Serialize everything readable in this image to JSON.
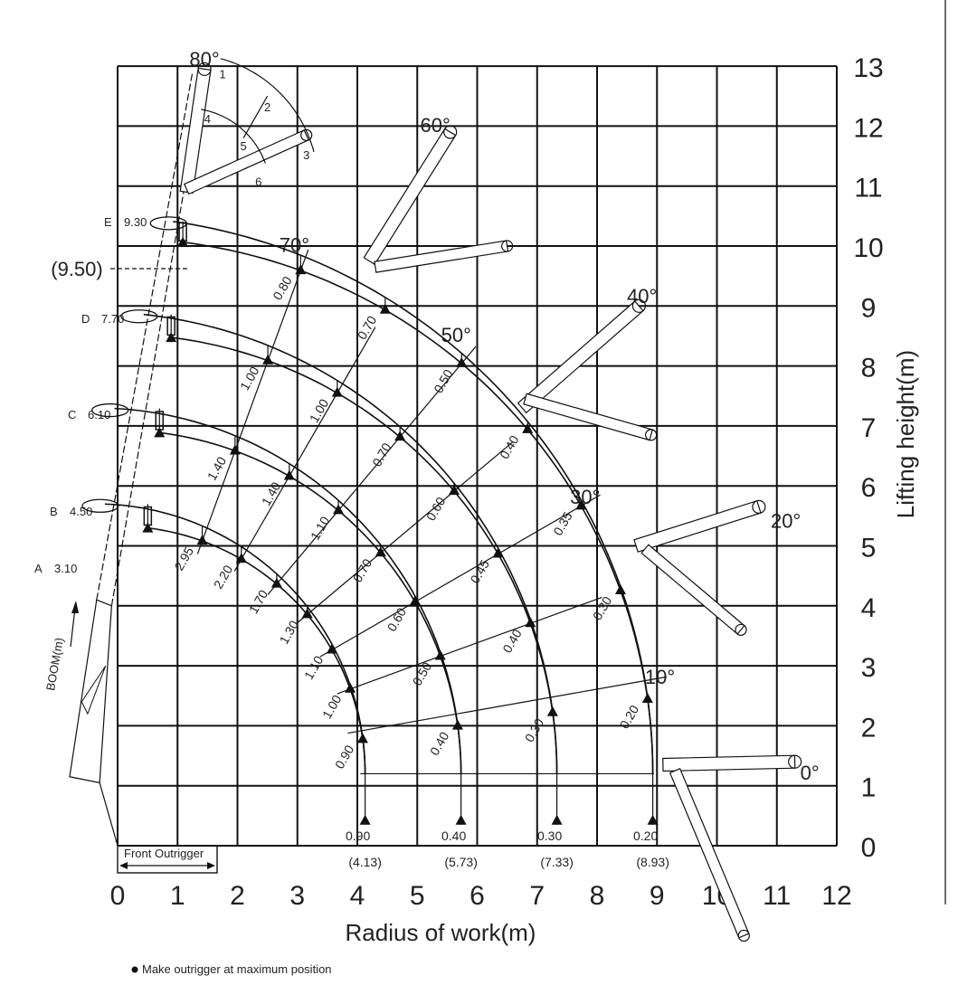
{
  "chart_data": {
    "type": "diagram",
    "xlabel": "Radius of work(m)",
    "ylabel": "Lifting height(m)",
    "xlim": [
      0,
      12
    ],
    "ylim": [
      0,
      13
    ],
    "grid": true,
    "x_ticks": [
      "0",
      "1",
      "2",
      "3",
      "4",
      "5",
      "6",
      "7",
      "8",
      "9",
      "10",
      "11",
      "12"
    ],
    "y_ticks": [
      "0",
      "1",
      "2",
      "3",
      "4",
      "5",
      "6",
      "7",
      "8",
      "9",
      "10",
      "11",
      "12",
      "13"
    ],
    "boom_angles": [
      "80°",
      "70°",
      "60°",
      "50°",
      "40°",
      "30°",
      "20°",
      "10°",
      "0°"
    ],
    "boom_axis_label": "BOOM(m)",
    "booms": [
      {
        "id": "A",
        "length": "3.10"
      },
      {
        "id": "B",
        "length": "4.50",
        "loads": [
          "2.95",
          "2.20",
          "1.70",
          "1.30",
          "1.10",
          "1.00",
          "0.90"
        ],
        "ground_load": "0.90",
        "ground_radius": 4.13,
        "ground_radius_label": "(4.13)"
      },
      {
        "id": "C",
        "length": "6.10",
        "loads": [
          "1.40",
          "1.40",
          "1.10",
          "0.70",
          "0.60",
          "0.50",
          "0.40"
        ],
        "ground_load": "0.40",
        "ground_radius": 5.73,
        "ground_radius_label": "(5.73)"
      },
      {
        "id": "D",
        "length": "7.70",
        "loads": [
          "1.00",
          "1.00",
          "0.70",
          "0.60",
          "0.45",
          "0.40",
          "0.30"
        ],
        "ground_load": "0.30",
        "ground_radius": 7.33,
        "ground_radius_label": "(7.33)"
      },
      {
        "id": "E",
        "length": "9.30",
        "loads": [
          "0.80",
          "0.70",
          "0.50",
          "0.40",
          "0.35",
          "0.30",
          "0.20"
        ],
        "ground_load": "0.20",
        "ground_radius": 8.93,
        "ground_radius_label": "(8.93)"
      }
    ],
    "max_hook_height_label": "(9.50)",
    "jib_position_labels": [
      "1",
      "2",
      "3",
      "4",
      "5",
      "6"
    ],
    "front_outrigger_label": "Front Outrigger",
    "footnote": "Make outrigger at maximum position",
    "line_color": "#111111"
  }
}
